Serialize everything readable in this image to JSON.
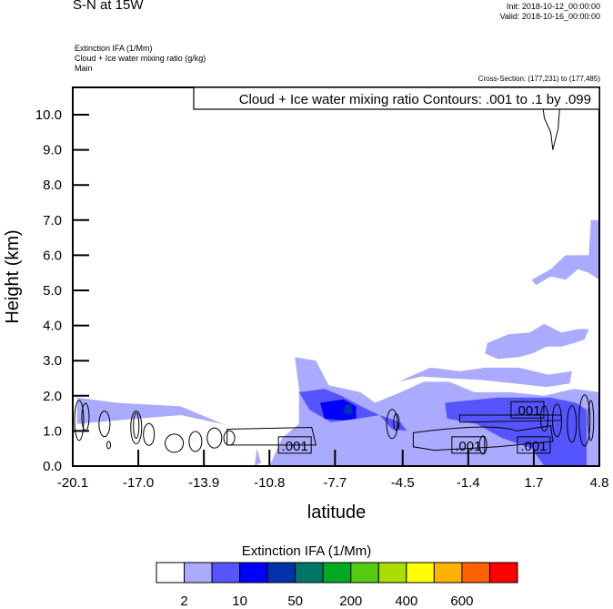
{
  "header": {
    "title": "S-N at 15W",
    "init": "Init: 2018-10-12_00:00:00",
    "valid": "Valid: 2018-10-16_00:00:00",
    "subtitle_lines": [
      "Extinction IFA   (1/Mm)",
      "Cloud + Ice water mixing ratio   (g/kg)",
      "Main"
    ],
    "cross_section": "Cross-Section: (177,231) to (177,485)"
  },
  "chart_data": {
    "type": "heatmap",
    "title": "S-N at 15W",
    "xlabel": "latitude",
    "ylabel": "Height (km)",
    "xlim": [
      -20.1,
      4.8
    ],
    "ylim": [
      0.0,
      10.8
    ],
    "xticks": [
      "-20.1",
      "-17.0",
      "-13.9",
      "-10.8",
      "-7.7",
      "-4.5",
      "-1.4",
      "1.7",
      "4.8"
    ],
    "yticks": [
      "0.0",
      "1.0",
      "2.0",
      "3.0",
      "4.0",
      "5.0",
      "6.0",
      "7.0",
      "8.0",
      "9.0",
      "10.0"
    ],
    "contour_info": "Cloud + Ice water mixing ratio Contours: .001 to .1 by .099",
    "contour_labels": [
      {
        "text": ".001",
        "lat": -9.6,
        "height": 0.6
      },
      {
        "text": ".001",
        "lat": -1.4,
        "height": 0.6
      },
      {
        "text": ".001",
        "lat": 1.7,
        "height": 0.6
      },
      {
        "text": ".001",
        "lat": 1.4,
        "height": 1.6
      }
    ],
    "shaded_regions": [
      {
        "level": 1,
        "points": [
          [
            -19.9,
            1.95
          ],
          [
            -18.0,
            1.8
          ],
          [
            -15.0,
            1.7
          ],
          [
            -13.0,
            1.2
          ],
          [
            -12.3,
            1.1
          ],
          [
            -15.0,
            1.45
          ],
          [
            -18.0,
            1.3
          ],
          [
            -19.9,
            1.2
          ]
        ]
      },
      {
        "level": 1,
        "points": [
          [
            -11.5,
            0.0
          ],
          [
            -11.4,
            0.5
          ],
          [
            -11.2,
            0.1
          ]
        ]
      },
      {
        "level": 1,
        "points": [
          [
            -10.8,
            0.0
          ],
          [
            -10.2,
            0.8
          ],
          [
            -9.4,
            1.2
          ],
          [
            -9.4,
            2.2
          ],
          [
            -9.6,
            3.1
          ],
          [
            -8.6,
            3.0
          ],
          [
            -8.0,
            2.3
          ],
          [
            -6.5,
            2.1
          ],
          [
            -5.8,
            1.8
          ],
          [
            -4.6,
            2.1
          ],
          [
            -3.5,
            2.4
          ],
          [
            -2.3,
            2.4
          ],
          [
            -1.1,
            2.1
          ],
          [
            0.6,
            2.1
          ],
          [
            2.2,
            2.0
          ],
          [
            3.6,
            2.2
          ],
          [
            4.8,
            2.1
          ],
          [
            4.8,
            0.0
          ]
        ]
      },
      {
        "level": 1,
        "points": [
          [
            -4.7,
            2.4
          ],
          [
            -3.2,
            2.8
          ],
          [
            -1.8,
            2.7
          ],
          [
            -0.6,
            2.8
          ],
          [
            1.0,
            2.8
          ],
          [
            2.4,
            2.6
          ],
          [
            3.5,
            2.7
          ],
          [
            3.4,
            2.35
          ],
          [
            2.3,
            2.25
          ],
          [
            0.8,
            2.35
          ],
          [
            -0.8,
            2.45
          ],
          [
            -2.3,
            2.5
          ],
          [
            -3.6,
            2.55
          ]
        ]
      },
      {
        "level": 1,
        "points": [
          [
            -0.5,
            3.5
          ],
          [
            0.5,
            3.75
          ],
          [
            1.5,
            3.8
          ],
          [
            2.2,
            4.05
          ],
          [
            3.0,
            3.8
          ],
          [
            3.8,
            3.9
          ],
          [
            4.3,
            3.9
          ],
          [
            4.1,
            3.6
          ],
          [
            3.6,
            3.5
          ],
          [
            3.0,
            3.4
          ],
          [
            2.3,
            3.4
          ],
          [
            1.6,
            3.2
          ],
          [
            1.0,
            3.1
          ],
          [
            0.0,
            3.05
          ],
          [
            -0.6,
            3.2
          ]
        ]
      },
      {
        "level": 1,
        "points": [
          [
            1.6,
            5.3
          ],
          [
            2.5,
            5.6
          ],
          [
            3.2,
            6.0
          ],
          [
            3.8,
            6.0
          ],
          [
            4.3,
            6.0
          ],
          [
            4.4,
            7.0
          ],
          [
            4.8,
            7.0
          ],
          [
            4.8,
            5.3
          ],
          [
            4.3,
            5.5
          ],
          [
            3.8,
            5.6
          ],
          [
            3.2,
            5.3
          ],
          [
            2.5,
            5.4
          ],
          [
            1.8,
            5.15
          ]
        ]
      },
      {
        "level": 2,
        "points": [
          [
            -9.4,
            2.1
          ],
          [
            -8.2,
            2.2
          ],
          [
            -7.4,
            2.0
          ],
          [
            -6.3,
            1.65
          ],
          [
            -5.6,
            1.45
          ],
          [
            -6.6,
            1.35
          ],
          [
            -7.9,
            1.25
          ],
          [
            -8.9,
            1.6
          ]
        ]
      },
      {
        "level": 2,
        "points": [
          [
            -2.5,
            1.8
          ],
          [
            0.0,
            1.95
          ],
          [
            2.5,
            1.95
          ],
          [
            3.7,
            1.8
          ],
          [
            4.2,
            1.6
          ],
          [
            4.2,
            0.0
          ],
          [
            2.2,
            0.0
          ],
          [
            1.6,
            0.5
          ],
          [
            0.2,
            0.8
          ],
          [
            -1.0,
            1.2
          ],
          [
            -2.4,
            1.35
          ]
        ]
      },
      {
        "level": 2,
        "points": [
          [
            -5.6,
            1.45
          ],
          [
            -4.6,
            1.25
          ],
          [
            -4.3,
            1.0
          ],
          [
            -5.0,
            1.05
          ]
        ]
      },
      {
        "level": 3,
        "points": [
          [
            -8.4,
            1.8
          ],
          [
            -7.3,
            1.9
          ],
          [
            -6.7,
            1.7
          ],
          [
            -6.7,
            1.35
          ],
          [
            -7.3,
            1.3
          ],
          [
            -8.2,
            1.35
          ]
        ]
      },
      {
        "level": 4,
        "points": [
          [
            -7.2,
            1.75
          ],
          [
            -6.95,
            1.75
          ],
          [
            -6.85,
            1.5
          ],
          [
            -7.1,
            1.45
          ],
          [
            -7.3,
            1.55
          ]
        ]
      }
    ],
    "colorbar": {
      "title": "Extinction IFA  (1/Mm)",
      "colors": [
        "#ffffff",
        "#aaaaff",
        "#5555ff",
        "#0000ff",
        "#0033aa",
        "#007766",
        "#00aa22",
        "#55cc11",
        "#aadd00",
        "#ffff00",
        "#ffb300",
        "#ff6000",
        "#ff0000"
      ],
      "labels": [
        "2",
        "10",
        "50",
        "200",
        "400",
        "600"
      ]
    }
  }
}
